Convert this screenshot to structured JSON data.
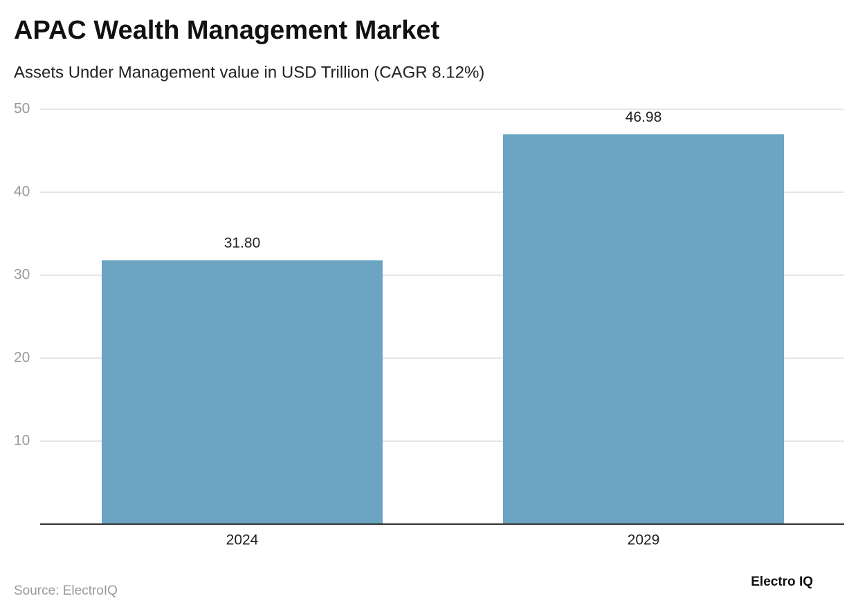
{
  "chart_data": {
    "type": "bar",
    "title": "APAC Wealth Management Market",
    "subtitle": "Assets Under Management value in USD Trillion (CAGR 8.12%)",
    "categories": [
      "2024",
      "2029"
    ],
    "values": [
      31.8,
      46.98
    ],
    "value_labels": [
      "31.80",
      "46.98"
    ],
    "color": "#6ba5c1",
    "ylim": [
      0,
      50
    ],
    "yticks": [
      10,
      20,
      30,
      40,
      50
    ],
    "grid": true,
    "source": "Source: ElectroIQ",
    "logo": "Electro IQ"
  }
}
